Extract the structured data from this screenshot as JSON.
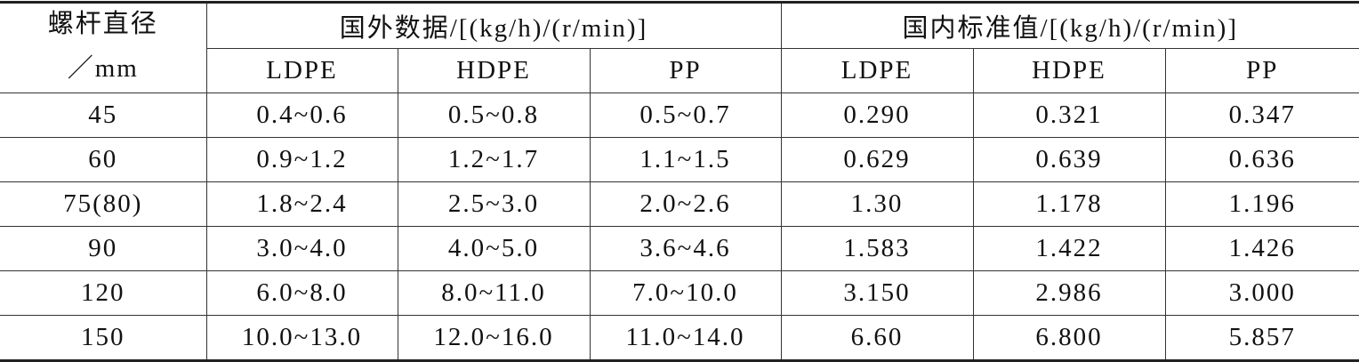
{
  "table": {
    "header": {
      "diameter": [
        "螺杆直径",
        "／mm"
      ],
      "groups": [
        "国外数据/[(kg/h)/(r/min)]",
        "国内标准值/[(kg/h)/(r/min)]"
      ],
      "columns": [
        "LDPE",
        "HDPE",
        "PP",
        "LDPE",
        "HDPE",
        "PP"
      ]
    },
    "rows": [
      [
        "45",
        "0.4~0.6",
        "0.5~0.8",
        "0.5~0.7",
        "0.290",
        "0.321",
        "0.347"
      ],
      [
        "60",
        "0.9~1.2",
        "1.2~1.7",
        "1.1~1.5",
        "0.629",
        "0.639",
        "0.636"
      ],
      [
        "75(80)",
        "1.8~2.4",
        "2.5~3.0",
        "2.0~2.6",
        "1.30",
        "1.178",
        "1.196"
      ],
      [
        "90",
        "3.0~4.0",
        "4.0~5.0",
        "3.6~4.6",
        "1.583",
        "1.422",
        "1.426"
      ],
      [
        "120",
        "6.0~8.0",
        "8.0~11.0",
        "7.0~10.0",
        "3.150",
        "2.986",
        "3.000"
      ],
      [
        "150",
        "10.0~13.0",
        "12.0~16.0",
        "11.0~14.0",
        "6.60",
        "6.800",
        "5.857"
      ]
    ]
  }
}
